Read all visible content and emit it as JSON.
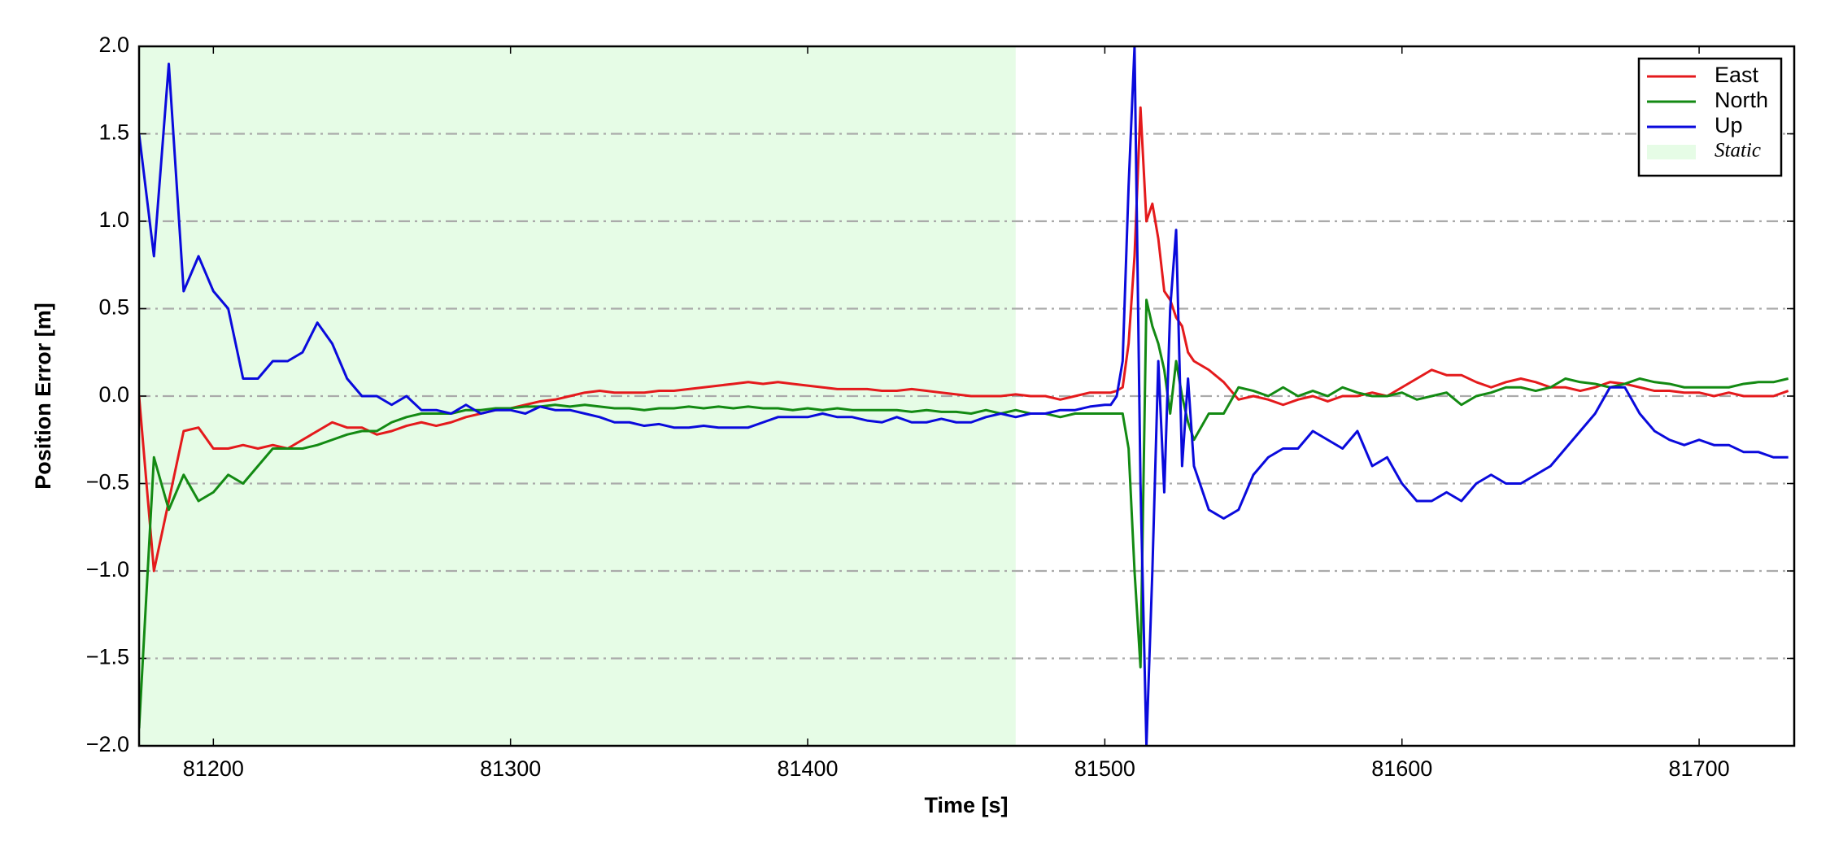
{
  "chart_data": {
    "type": "line",
    "xlabel": "Time [s]",
    "ylabel": "Position Error [m]",
    "xlim": [
      81175,
      81732
    ],
    "ylim": [
      -2,
      2
    ],
    "xticks": [
      81200,
      81300,
      81400,
      81500,
      81600,
      81700
    ],
    "yticks": [
      {
        "value": -2,
        "label": "−2.0"
      },
      {
        "value": -1.5,
        "label": "−1.5"
      },
      {
        "value": -1,
        "label": "−1.0"
      },
      {
        "value": -0.5,
        "label": "−0.5"
      },
      {
        "value": 0,
        "label": "0.0"
      },
      0.5,
      {
        "value": 1,
        "label": "1.0"
      },
      1.5,
      {
        "value": 2,
        "label": "2.0"
      }
    ],
    "grid": true,
    "legend": "upper right",
    "shaded_region": {
      "label": "Static",
      "xlim": [
        81175,
        81470
      ],
      "color": "#e6fce6"
    },
    "x": [
      81175,
      81180,
      81185,
      81190,
      81195,
      81200,
      81205,
      81210,
      81215,
      81220,
      81225,
      81230,
      81235,
      81240,
      81245,
      81250,
      81255,
      81260,
      81265,
      81270,
      81275,
      81280,
      81285,
      81290,
      81295,
      81300,
      81305,
      81310,
      81315,
      81320,
      81325,
      81330,
      81335,
      81340,
      81345,
      81350,
      81355,
      81360,
      81365,
      81370,
      81375,
      81380,
      81385,
      81390,
      81395,
      81400,
      81405,
      81410,
      81415,
      81420,
      81425,
      81430,
      81435,
      81440,
      81445,
      81450,
      81455,
      81460,
      81465,
      81470,
      81475,
      81480,
      81485,
      81490,
      81495,
      81500,
      81502,
      81504,
      81506,
      81508,
      81510,
      81512,
      81514,
      81516,
      81518,
      81520,
      81522,
      81524,
      81526,
      81528,
      81530,
      81535,
      81540,
      81545,
      81550,
      81555,
      81560,
      81565,
      81570,
      81575,
      81580,
      81585,
      81590,
      81595,
      81600,
      81605,
      81610,
      81615,
      81620,
      81625,
      81630,
      81635,
      81640,
      81645,
      81650,
      81655,
      81660,
      81665,
      81670,
      81675,
      81680,
      81685,
      81690,
      81695,
      81700,
      81705,
      81710,
      81715,
      81720,
      81725,
      81730
    ],
    "series": [
      {
        "name": "East",
        "color": "#e41a1c",
        "values": [
          0,
          -1.0,
          -0.6,
          -0.2,
          -0.18,
          -0.3,
          -0.3,
          -0.28,
          -0.3,
          -0.28,
          -0.3,
          -0.25,
          -0.2,
          -0.15,
          -0.18,
          -0.18,
          -0.22,
          -0.2,
          -0.17,
          -0.15,
          -0.17,
          -0.15,
          -0.12,
          -0.1,
          -0.08,
          -0.07,
          -0.05,
          -0.03,
          -0.02,
          0.0,
          0.02,
          0.03,
          0.02,
          0.02,
          0.02,
          0.03,
          0.03,
          0.04,
          0.05,
          0.06,
          0.07,
          0.08,
          0.07,
          0.08,
          0.07,
          0.06,
          0.05,
          0.04,
          0.04,
          0.04,
          0.03,
          0.03,
          0.04,
          0.03,
          0.02,
          0.01,
          0.0,
          0.0,
          0.0,
          0.01,
          0.0,
          0.0,
          -0.02,
          0.0,
          0.02,
          0.02,
          0.02,
          0.03,
          0.05,
          0.3,
          0.8,
          1.65,
          1.0,
          1.1,
          0.9,
          0.6,
          0.55,
          0.45,
          0.4,
          0.25,
          0.2,
          0.15,
          0.08,
          -0.02,
          0.0,
          -0.02,
          -0.05,
          -0.02,
          0.0,
          -0.03,
          0.0,
          0.0,
          0.02,
          0.0,
          0.05,
          0.1,
          0.15,
          0.12,
          0.12,
          0.08,
          0.05,
          0.08,
          0.1,
          0.08,
          0.05,
          0.05,
          0.03,
          0.05,
          0.08,
          0.07,
          0.05,
          0.03,
          0.03,
          0.02,
          0.02,
          0.0,
          0.02,
          0.0,
          0.0,
          0.0,
          0.03
        ]
      },
      {
        "name": "North",
        "color": "#138a13",
        "values": [
          -1.9,
          -0.35,
          -0.65,
          -0.45,
          -0.6,
          -0.55,
          -0.45,
          -0.5,
          -0.4,
          -0.3,
          -0.3,
          -0.3,
          -0.28,
          -0.25,
          -0.22,
          -0.2,
          -0.2,
          -0.15,
          -0.12,
          -0.1,
          -0.1,
          -0.1,
          -0.08,
          -0.08,
          -0.07,
          -0.07,
          -0.06,
          -0.06,
          -0.05,
          -0.06,
          -0.05,
          -0.06,
          -0.07,
          -0.07,
          -0.08,
          -0.07,
          -0.07,
          -0.06,
          -0.07,
          -0.06,
          -0.07,
          -0.06,
          -0.07,
          -0.07,
          -0.08,
          -0.07,
          -0.08,
          -0.07,
          -0.08,
          -0.08,
          -0.08,
          -0.08,
          -0.09,
          -0.08,
          -0.09,
          -0.09,
          -0.1,
          -0.08,
          -0.1,
          -0.08,
          -0.1,
          -0.1,
          -0.12,
          -0.1,
          -0.1,
          -0.1,
          -0.1,
          -0.1,
          -0.1,
          -0.3,
          -1.0,
          -1.55,
          0.55,
          0.4,
          0.3,
          0.15,
          -0.1,
          0.2,
          0.0,
          -0.15,
          -0.25,
          -0.1,
          -0.1,
          0.05,
          0.03,
          0.0,
          0.05,
          0.0,
          0.03,
          0.0,
          0.05,
          0.02,
          0.0,
          0.0,
          0.02,
          -0.02,
          0.0,
          0.02,
          -0.05,
          0.0,
          0.02,
          0.05,
          0.05,
          0.03,
          0.05,
          0.1,
          0.08,
          0.07,
          0.05,
          0.07,
          0.1,
          0.08,
          0.07,
          0.05,
          0.05,
          0.05,
          0.05,
          0.07,
          0.08,
          0.08,
          0.1
        ]
      },
      {
        "name": "Up",
        "color": "#0a0adc",
        "values": [
          1.5,
          0.8,
          1.9,
          0.6,
          0.8,
          0.6,
          0.5,
          0.1,
          0.1,
          0.2,
          0.2,
          0.25,
          0.42,
          0.3,
          0.1,
          0.0,
          0.0,
          -0.05,
          0.0,
          -0.08,
          -0.08,
          -0.1,
          -0.05,
          -0.1,
          -0.08,
          -0.08,
          -0.1,
          -0.06,
          -0.08,
          -0.08,
          -0.1,
          -0.12,
          -0.15,
          -0.15,
          -0.17,
          -0.16,
          -0.18,
          -0.18,
          -0.17,
          -0.18,
          -0.18,
          -0.18,
          -0.15,
          -0.12,
          -0.12,
          -0.12,
          -0.1,
          -0.12,
          -0.12,
          -0.14,
          -0.15,
          -0.12,
          -0.15,
          -0.15,
          -0.13,
          -0.15,
          -0.15,
          -0.12,
          -0.1,
          -0.12,
          -0.1,
          -0.1,
          -0.08,
          -0.08,
          -0.06,
          -0.05,
          -0.05,
          0.0,
          0.2,
          1.2,
          2.0,
          -0.5,
          -2.0,
          -1.0,
          0.2,
          -0.55,
          0.5,
          0.95,
          -0.4,
          0.1,
          -0.4,
          -0.65,
          -0.7,
          -0.65,
          -0.45,
          -0.35,
          -0.3,
          -0.3,
          -0.2,
          -0.25,
          -0.3,
          -0.2,
          -0.4,
          -0.35,
          -0.5,
          -0.6,
          -0.6,
          -0.55,
          -0.6,
          -0.5,
          -0.45,
          -0.5,
          -0.5,
          -0.45,
          -0.4,
          -0.3,
          -0.2,
          -0.1,
          0.05,
          0.05,
          -0.1,
          -0.2,
          -0.25,
          -0.28,
          -0.25,
          -0.28,
          -0.28,
          -0.32,
          -0.32,
          -0.35,
          -0.35
        ]
      }
    ]
  }
}
